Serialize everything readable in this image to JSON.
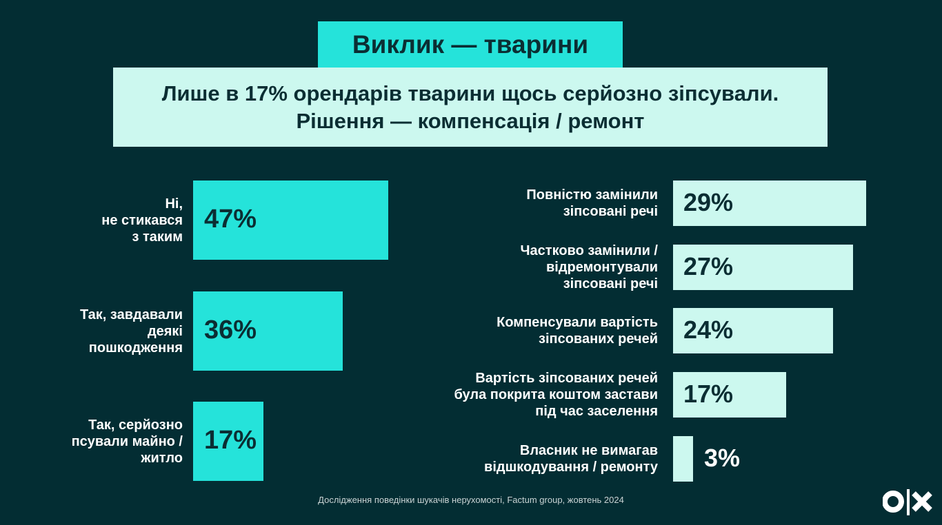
{
  "title": "Виклик — тварини",
  "subtitle": [
    "Лише в 17% орендарів тварини щось серйозно зіпсували.",
    "Рішення — компенсація / ремонт"
  ],
  "footer": "Дослідження поведінки шукачів нерухомості, Factum group, жовтень 2024",
  "logo": "olx",
  "colors": {
    "background": "#032d33",
    "left_bars": "#25e3da",
    "right_bars": "#ccf8ef",
    "text_dark": "#0b2e33"
  },
  "chart_data": [
    {
      "type": "bar",
      "orientation": "horizontal",
      "categories": [
        [
          "Ні,",
          "не стикався",
          "з таким"
        ],
        [
          "Так, завдавали",
          "деякі",
          "пошкодження"
        ],
        [
          "Так, серйозно",
          "псували майно /",
          "житло"
        ]
      ],
      "values": [
        47,
        36,
        17
      ],
      "labels": [
        "47%",
        "36%",
        "17%"
      ]
    },
    {
      "type": "bar",
      "orientation": "horizontal",
      "categories": [
        [
          "Повністю замінили",
          "зіпсовані речі"
        ],
        [
          "Частково замінили /",
          "відремонтували",
          "зіпсовані речі"
        ],
        [
          "Компенсували вартість",
          "зіпсованих речей"
        ],
        [
          "Вартість зіпсованих речей",
          "була покрита коштом застави",
          "під час заселення"
        ],
        [
          "Власник не вимагав",
          "відшкодування / ремонту"
        ]
      ],
      "values": [
        29,
        27,
        24,
        17,
        3
      ],
      "labels": [
        "29%",
        "27%",
        "24%",
        "17%",
        "3%"
      ]
    }
  ]
}
